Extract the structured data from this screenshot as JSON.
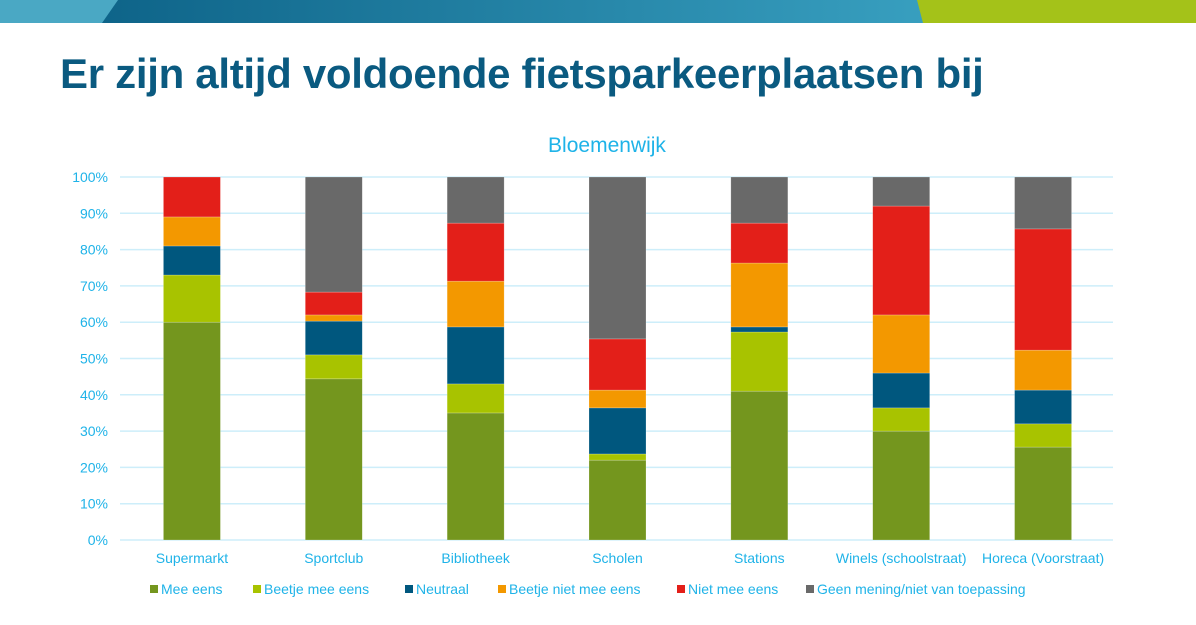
{
  "slide": {
    "title": "Er zijn altijd voldoende fietsparkeerplaatsen bij",
    "banner_colors": {
      "light": "#4aa8c4",
      "dark": "#0e6489",
      "mid": "#3aa2c2",
      "green": "#a4c219"
    }
  },
  "chart_data": {
    "type": "bar",
    "stacked": true,
    "title": "Bloemenwijk",
    "xlabel": "",
    "ylabel": "",
    "ylim": [
      0,
      100
    ],
    "y_ticks": [
      "0%",
      "10%",
      "20%",
      "30%",
      "40%",
      "50%",
      "60%",
      "70%",
      "80%",
      "90%",
      "100%"
    ],
    "grid": true,
    "legend_position": "bottom",
    "categories": [
      "Supermarkt",
      "Sportclub",
      "Bibliotheek",
      "Scholen",
      "Stations",
      "Winels (schoolstraat)",
      "Horeca (Voorstraat)"
    ],
    "series": [
      {
        "name": "Mee eens",
        "color": "#74961e",
        "values": [
          60,
          44.4,
          35,
          22,
          41,
          30,
          25.6
        ]
      },
      {
        "name": "Beetje mee eens",
        "color": "#a8c300",
        "values": [
          13,
          6.6,
          8,
          1.7,
          16.3,
          6.4,
          6.4
        ]
      },
      {
        "name": "Neutraal",
        "color": "#00577e",
        "values": [
          8,
          9.3,
          15.7,
          12.7,
          1.4,
          9.6,
          9.3
        ]
      },
      {
        "name": "Beetje niet mee eens",
        "color": "#f39800",
        "values": [
          8,
          1.7,
          12.6,
          4.9,
          17.6,
          16,
          11
        ]
      },
      {
        "name": "Niet mee eens",
        "color": "#e31f19",
        "values": [
          11,
          6.3,
          16,
          14.1,
          11,
          30,
          33.4
        ]
      },
      {
        "name": "Geen mening/niet van toepassing",
        "color": "#696969",
        "values": [
          0,
          31.7,
          12.7,
          44.6,
          12.7,
          8,
          14.3
        ]
      }
    ]
  }
}
